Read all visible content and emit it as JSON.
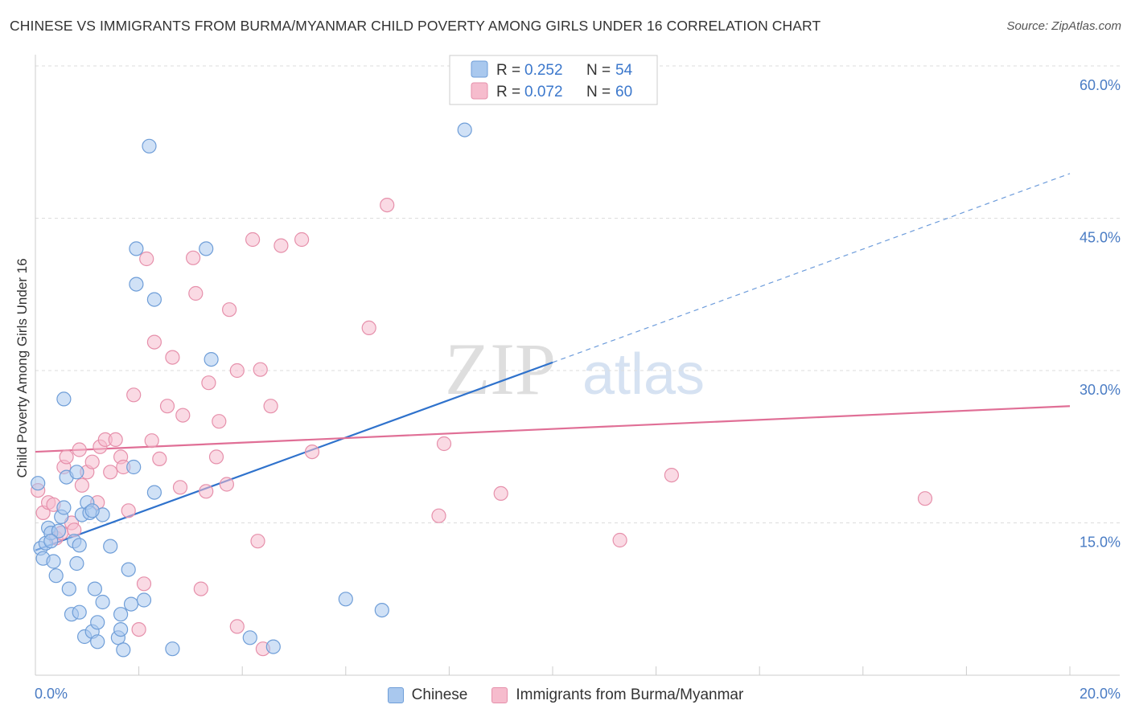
{
  "header": {
    "title": "CHINESE VS IMMIGRANTS FROM BURMA/MYANMAR CHILD POVERTY AMONG GIRLS UNDER 16 CORRELATION CHART",
    "source": "Source: ZipAtlas.com"
  },
  "watermark": {
    "zip": "ZIP",
    "atlas": "atlas"
  },
  "legend": {
    "rows": [
      {
        "r_label": "R =",
        "r_value": "0.252",
        "n_label": "N =",
        "n_value": "54"
      },
      {
        "r_label": "R =",
        "r_value": "0.072",
        "n_label": "N =",
        "n_value": "60"
      }
    ]
  },
  "bottom_legend": {
    "items": [
      "Chinese",
      "Immigrants from Burma/Myanmar"
    ]
  },
  "chart_data": {
    "type": "scatter",
    "title": "CHINESE VS IMMIGRANTS FROM BURMA/MYANMAR CHILD POVERTY AMONG GIRLS UNDER 16 CORRELATION CHART",
    "xlabel": "",
    "ylabel": "Child Poverty Among Girls Under 16",
    "xlim": [
      0,
      20
    ],
    "ylim": [
      0,
      60
    ],
    "x_tick_labels": [
      "0.0%",
      "20.0%"
    ],
    "y_ticks": [
      15,
      30,
      45,
      60
    ],
    "y_tick_labels": [
      "15.0%",
      "30.0%",
      "45.0%",
      "60.0%"
    ],
    "grid": true,
    "legend_position": "top-center",
    "colors": {
      "chinese_fill": "#a9c8ee",
      "chinese_stroke": "#6f9ed8",
      "chinese_line": "#2f72cc",
      "burma_fill": "#f6bccd",
      "burma_stroke": "#e690ab",
      "burma_line": "#e06f96",
      "tick_label": "#4a7cc4"
    },
    "series": [
      {
        "name": "Chinese",
        "r": 0.252,
        "n": 54,
        "trend": {
          "x": [
            0.0,
            10.0
          ],
          "y": [
            12.3,
            30.8
          ],
          "dashed_to": [
            20.0,
            49.4
          ]
        },
        "points": [
          [
            0.05,
            18.9
          ],
          [
            0.1,
            12.5
          ],
          [
            0.15,
            11.5
          ],
          [
            0.2,
            13.0
          ],
          [
            0.25,
            14.5
          ],
          [
            0.3,
            14.0
          ],
          [
            0.35,
            11.2
          ],
          [
            0.4,
            9.8
          ],
          [
            0.45,
            14.2
          ],
          [
            0.5,
            15.6
          ],
          [
            0.55,
            27.2
          ],
          [
            0.55,
            16.5
          ],
          [
            0.6,
            19.5
          ],
          [
            0.65,
            8.5
          ],
          [
            0.7,
            6.0
          ],
          [
            0.75,
            13.2
          ],
          [
            0.8,
            20.0
          ],
          [
            0.8,
            11.0
          ],
          [
            0.85,
            12.8
          ],
          [
            0.85,
            6.2
          ],
          [
            0.9,
            15.8
          ],
          [
            0.95,
            3.8
          ],
          [
            1.0,
            17.0
          ],
          [
            1.05,
            16.0
          ],
          [
            1.1,
            4.3
          ],
          [
            1.15,
            8.5
          ],
          [
            1.2,
            5.2
          ],
          [
            1.2,
            3.3
          ],
          [
            1.3,
            7.2
          ],
          [
            1.3,
            15.8
          ],
          [
            1.45,
            12.7
          ],
          [
            1.6,
            3.7
          ],
          [
            1.65,
            4.5
          ],
          [
            1.65,
            6.0
          ],
          [
            1.7,
            2.5
          ],
          [
            1.8,
            10.4
          ],
          [
            1.85,
            7.0
          ],
          [
            1.9,
            20.5
          ],
          [
            1.95,
            42.0
          ],
          [
            1.95,
            38.5
          ],
          [
            2.1,
            7.4
          ],
          [
            2.2,
            52.1
          ],
          [
            2.3,
            37.0
          ],
          [
            2.3,
            18.0
          ],
          [
            2.65,
            2.6
          ],
          [
            3.3,
            42.0
          ],
          [
            3.4,
            31.1
          ],
          [
            4.15,
            3.7
          ],
          [
            4.6,
            2.8
          ],
          [
            6.0,
            7.5
          ],
          [
            6.7,
            6.4
          ],
          [
            8.3,
            53.7
          ],
          [
            0.3,
            13.2
          ],
          [
            1.1,
            16.2
          ]
        ]
      },
      {
        "name": "Immigrants from Burma/Myanmar",
        "r": 0.072,
        "n": 60,
        "trend": {
          "x": [
            0.0,
            20.0
          ],
          "y": [
            22.0,
            26.5
          ]
        },
        "points": [
          [
            0.05,
            18.2
          ],
          [
            0.15,
            16.0
          ],
          [
            0.25,
            17.0
          ],
          [
            0.35,
            16.8
          ],
          [
            0.4,
            13.5
          ],
          [
            0.5,
            14.0
          ],
          [
            0.55,
            20.5
          ],
          [
            0.6,
            21.5
          ],
          [
            0.7,
            15.0
          ],
          [
            0.75,
            14.3
          ],
          [
            0.85,
            22.2
          ],
          [
            0.9,
            18.7
          ],
          [
            1.0,
            20.0
          ],
          [
            1.1,
            21.0
          ],
          [
            1.2,
            17.0
          ],
          [
            1.25,
            22.5
          ],
          [
            1.35,
            23.2
          ],
          [
            1.45,
            20.0
          ],
          [
            1.55,
            23.2
          ],
          [
            1.65,
            21.5
          ],
          [
            1.7,
            20.5
          ],
          [
            1.8,
            16.2
          ],
          [
            1.9,
            27.6
          ],
          [
            2.15,
            41.0
          ],
          [
            2.1,
            9.0
          ],
          [
            2.0,
            4.5
          ],
          [
            2.25,
            23.1
          ],
          [
            2.3,
            32.8
          ],
          [
            2.4,
            21.3
          ],
          [
            2.55,
            26.5
          ],
          [
            2.65,
            31.3
          ],
          [
            2.8,
            18.5
          ],
          [
            2.85,
            25.6
          ],
          [
            3.05,
            41.1
          ],
          [
            3.1,
            37.6
          ],
          [
            3.2,
            8.5
          ],
          [
            3.3,
            18.1
          ],
          [
            3.35,
            28.8
          ],
          [
            3.5,
            21.5
          ],
          [
            3.55,
            25.0
          ],
          [
            3.7,
            18.8
          ],
          [
            3.75,
            36.0
          ],
          [
            3.9,
            30.0
          ],
          [
            3.9,
            4.8
          ],
          [
            4.2,
            42.9
          ],
          [
            4.3,
            13.2
          ],
          [
            4.35,
            30.1
          ],
          [
            4.4,
            2.6
          ],
          [
            4.55,
            26.5
          ],
          [
            4.75,
            42.3
          ],
          [
            5.15,
            42.9
          ],
          [
            5.35,
            22.0
          ],
          [
            6.45,
            34.2
          ],
          [
            6.8,
            46.3
          ],
          [
            7.8,
            15.7
          ],
          [
            7.9,
            22.8
          ],
          [
            9.0,
            17.9
          ],
          [
            11.3,
            13.3
          ],
          [
            12.3,
            19.7
          ],
          [
            17.2,
            17.4
          ]
        ]
      }
    ]
  }
}
